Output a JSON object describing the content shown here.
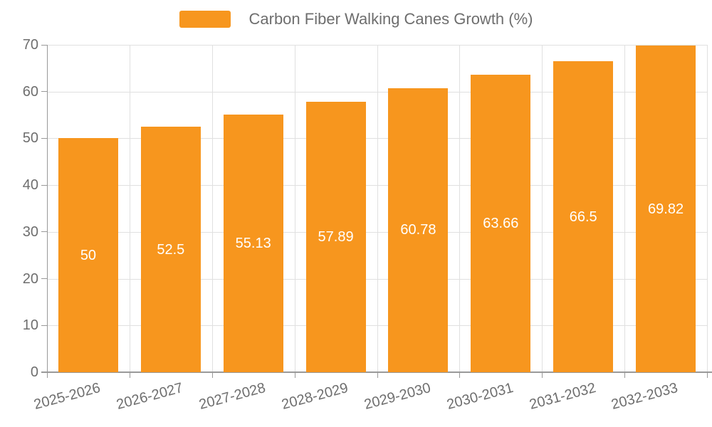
{
  "legend": {
    "label": "Carbon Fiber Walking Canes Growth (%)",
    "swatch_color": "#F7961E"
  },
  "chart_data": {
    "type": "bar",
    "title": "",
    "xlabel": "",
    "ylabel": "",
    "categories": [
      "2025-2026",
      "2026-2027",
      "2027-2028",
      "2028-2029",
      "2029-2030",
      "2030-2031",
      "2031-2032",
      "2032-2033"
    ],
    "series": [
      {
        "name": "Carbon Fiber Walking Canes Growth (%)",
        "values": [
          50,
          52.5,
          55.13,
          57.89,
          60.78,
          63.66,
          66.5,
          69.82
        ],
        "value_labels": [
          "50",
          "52.5",
          "55.13",
          "57.89",
          "60.78",
          "63.66",
          "66.5",
          "69.82"
        ],
        "color": "#F7961E"
      }
    ],
    "ylim": [
      0,
      70
    ],
    "ytick_interval": 10,
    "ytick_labels": [
      "0",
      "10",
      "20",
      "30",
      "40",
      "50",
      "60",
      "70"
    ],
    "grid": true,
    "legend_position": "top-center",
    "bar_label_position": "inside-center",
    "bar_label_color": "#FFFFFF",
    "x_label_rotation_deg": -15
  },
  "colors": {
    "background": "#FFFFFF",
    "bar": "#F7961E",
    "gridline": "#E0E0E0",
    "axis_line": "#999999",
    "axis_text": "#6E6E6E",
    "value_label_text": "#FFFFFF"
  }
}
